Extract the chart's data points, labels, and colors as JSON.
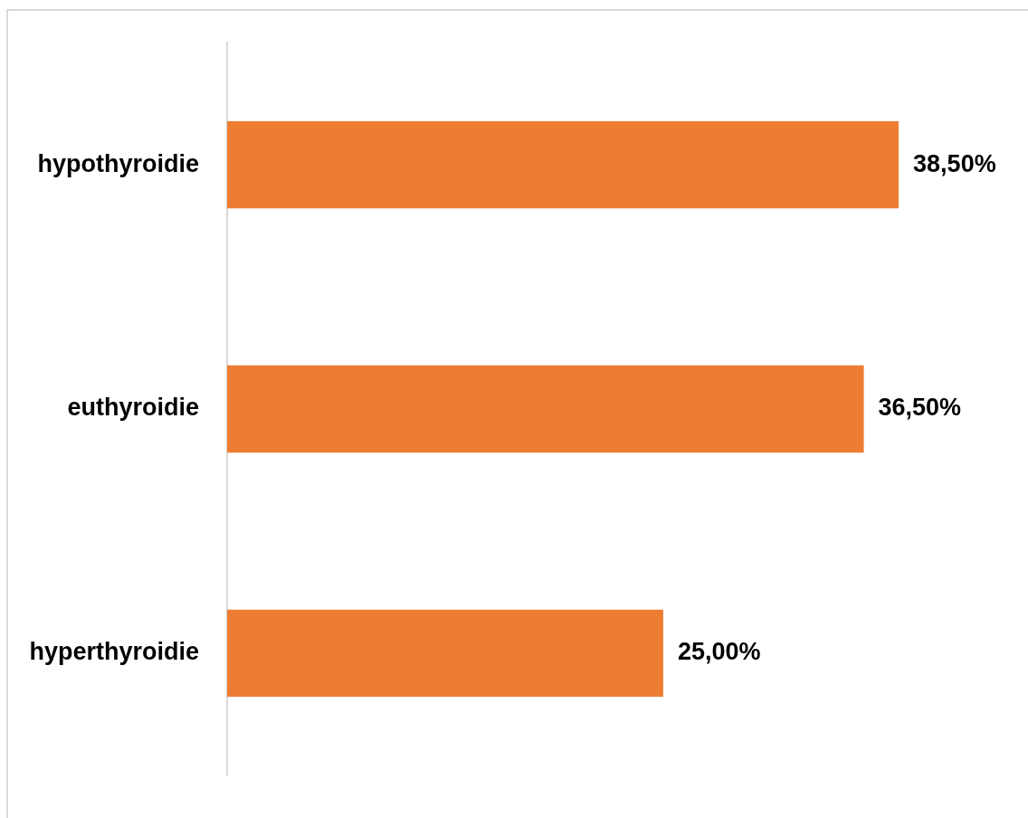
{
  "chart_data": {
    "type": "bar",
    "orientation": "horizontal",
    "categories": [
      "hypothyroidie",
      "euthyroidie",
      "hyperthyroidie"
    ],
    "values": [
      38.5,
      36.5,
      25
    ],
    "value_labels": [
      "38,50%",
      "36,50%",
      "25,00%"
    ],
    "color": "#ed7d31",
    "tick_labels": "y"
  }
}
